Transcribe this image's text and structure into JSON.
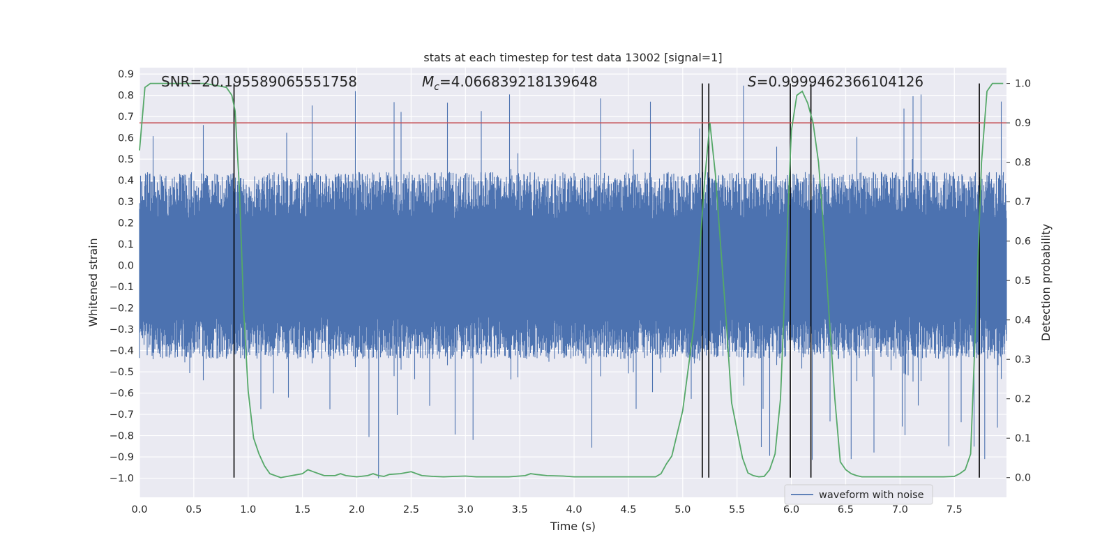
{
  "chart_data": {
    "type": "line",
    "title": "stats at each timestep for test data 13002 [signal=1]",
    "xlabel": "Time (s)",
    "ylabel_left": "Whitened strain",
    "ylabel_right": "Detection probability",
    "xlim": [
      0.0,
      7.98
    ],
    "ylim_left": [
      -1.09,
      0.93
    ],
    "ylim_right": [
      -0.05,
      1.04
    ],
    "x_ticks": [
      "0.0",
      "0.5",
      "1.0",
      "1.5",
      "2.0",
      "2.5",
      "3.0",
      "3.5",
      "4.0",
      "4.5",
      "5.0",
      "5.5",
      "6.0",
      "6.5",
      "7.0",
      "7.5"
    ],
    "y_left_ticks": [
      "0.9",
      "0.8",
      "0.7",
      "0.6",
      "0.5",
      "0.4",
      "0.3",
      "0.2",
      "0.1",
      "0.0",
      "−0.1",
      "−0.2",
      "−0.3",
      "−0.4",
      "−0.5",
      "−0.6",
      "−0.7",
      "−0.8",
      "−0.9",
      "−1.0"
    ],
    "y_right_ticks": [
      "1.0",
      "0.9",
      "0.8",
      "0.7",
      "0.6",
      "0.5",
      "0.4",
      "0.3",
      "0.2",
      "0.1",
      "0.0"
    ],
    "grid": true,
    "legend": {
      "position": "lower-right",
      "entries": [
        "waveform with noise"
      ]
    },
    "annotations": {
      "snr": "SNR=20.195589065551758",
      "mc_symbol": "M",
      "mc_sub": "c",
      "mc_value": "=4.066839218139648",
      "s_symbol": "S",
      "s_value": "=0.9999462366104126"
    },
    "threshold": {
      "axis": "right",
      "value": 0.9
    },
    "vertical_markers_s": [
      0.87,
      5.18,
      5.24,
      5.99,
      6.18,
      7.73
    ],
    "waveform": {
      "name": "waveform with noise",
      "description_typical_amplitude": 0.4,
      "max": 0.85,
      "min": -1.0
    },
    "series": [
      {
        "name": "",
        "axis": "right",
        "x": [
          0.0,
          0.05,
          0.1,
          0.2,
          0.3,
          0.4,
          0.5,
          0.6,
          0.7,
          0.8,
          0.85,
          0.88,
          0.92,
          0.96,
          1.0,
          1.05,
          1.1,
          1.15,
          1.2,
          1.3,
          1.4,
          1.5,
          1.55,
          1.6,
          1.65,
          1.7,
          1.8,
          1.85,
          1.9,
          2.0,
          2.1,
          2.15,
          2.2,
          2.25,
          2.3,
          2.4,
          2.5,
          2.55,
          2.6,
          2.7,
          2.8,
          2.9,
          3.0,
          3.1,
          3.2,
          3.4,
          3.55,
          3.6,
          3.65,
          3.75,
          3.9,
          4.0,
          4.2,
          4.5,
          4.75,
          4.8,
          4.85,
          4.9,
          5.0,
          5.1,
          5.15,
          5.2,
          5.25,
          5.3,
          5.4,
          5.45,
          5.5,
          5.55,
          5.6,
          5.65,
          5.7,
          5.75,
          5.8,
          5.85,
          5.9,
          5.95,
          6.0,
          6.05,
          6.1,
          6.15,
          6.2,
          6.25,
          6.3,
          6.35,
          6.4,
          6.45,
          6.5,
          6.55,
          6.6,
          6.65,
          6.7,
          6.8,
          7.0,
          7.2,
          7.4,
          7.5,
          7.55,
          7.6,
          7.65,
          7.7,
          7.75,
          7.8,
          7.85,
          7.9,
          7.95
        ],
        "values": [
          0.83,
          0.99,
          1.0,
          1.0,
          1.0,
          1.0,
          1.0,
          1.0,
          0.995,
          0.99,
          0.97,
          0.93,
          0.73,
          0.42,
          0.22,
          0.1,
          0.06,
          0.03,
          0.01,
          0.0,
          0.005,
          0.01,
          0.02,
          0.015,
          0.01,
          0.005,
          0.005,
          0.01,
          0.005,
          0.002,
          0.005,
          0.01,
          0.005,
          0.003,
          0.008,
          0.01,
          0.015,
          0.01,
          0.005,
          0.003,
          0.002,
          0.003,
          0.004,
          0.002,
          0.002,
          0.002,
          0.005,
          0.01,
          0.008,
          0.005,
          0.004,
          0.002,
          0.002,
          0.002,
          0.002,
          0.01,
          0.035,
          0.055,
          0.17,
          0.38,
          0.55,
          0.75,
          0.9,
          0.77,
          0.4,
          0.19,
          0.12,
          0.05,
          0.012,
          0.005,
          0.002,
          0.003,
          0.02,
          0.06,
          0.2,
          0.55,
          0.88,
          0.97,
          0.98,
          0.95,
          0.9,
          0.8,
          0.62,
          0.4,
          0.2,
          0.04,
          0.02,
          0.01,
          0.005,
          0.002,
          0.002,
          0.002,
          0.002,
          0.002,
          0.002,
          0.003,
          0.01,
          0.02,
          0.06,
          0.42,
          0.8,
          0.98,
          1.0,
          1.0,
          1.0
        ]
      }
    ],
    "colors": {
      "waveform": "#4c72b0",
      "probability": "#55a868",
      "threshold": "#c44e52",
      "markers": "#000000",
      "plot_background": "#eaeaf2",
      "grid": "#ffffff"
    }
  }
}
